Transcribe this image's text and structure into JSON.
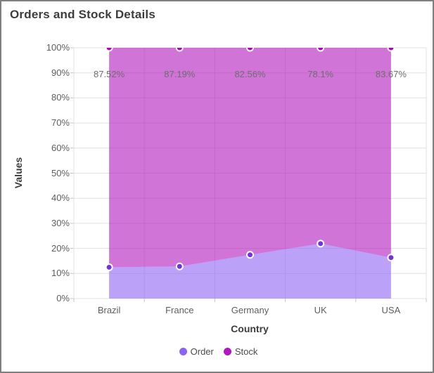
{
  "title": "Orders and Stock Details",
  "chart_data": {
    "type": "area",
    "stacking": "100%",
    "categories": [
      "Brazil",
      "France",
      "Germany",
      "UK",
      "USA"
    ],
    "series": [
      {
        "name": "Order",
        "values": [
          12.48,
          12.81,
          17.44,
          21.9,
          16.33
        ],
        "color": "#8e63f1",
        "marker_color": "#7433d3"
      },
      {
        "name": "Stock",
        "values": [
          87.52,
          87.19,
          82.56,
          78.1,
          83.67
        ],
        "color": "#b018bd",
        "marker_color": "#a70ab5"
      }
    ],
    "data_labels": [
      "87.52%",
      "87.19%",
      "82.56%",
      "78.1%",
      "83.67%"
    ],
    "xlabel": "Country",
    "ylabel": "Values",
    "ylim": [
      0,
      100
    ],
    "y_tick_labels": [
      "0%",
      "10%",
      "20%",
      "30%",
      "40%",
      "50%",
      "60%",
      "70%",
      "80%",
      "90%",
      "100%"
    ],
    "grid": true,
    "legend_position": "bottom",
    "area_opacity": 0.6,
    "grid_color": "#e0e0e0",
    "tick_color": "#c4c4c4",
    "marker_border_color": "#ffffff"
  }
}
